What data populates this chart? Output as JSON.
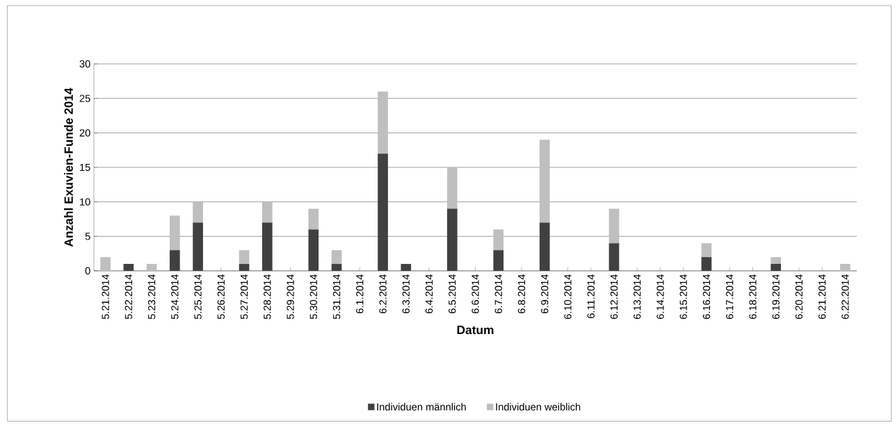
{
  "chart_data": {
    "type": "bar",
    "stacked": true,
    "xlabel": "Datum",
    "ylabel": "Anzahl Exuvien-Funde 2014",
    "categories": [
      "5.21.2014",
      "5.22.2014",
      "5.23.2014",
      "5.24.2014",
      "5.25.2014",
      "5.26.2014",
      "5.27.2014",
      "5.28.2014",
      "5.29.2014",
      "5.30.2014",
      "5.31.2014",
      "6.1.2014",
      "6.2.2014",
      "6.3.2014",
      "6.4.2014",
      "6.5.2014",
      "6.6.2014",
      "6.7.2014",
      "6.8.2014",
      "6.9.2014",
      "6.10.2014",
      "6.11.2014",
      "6.12.2014",
      "6.13.2014",
      "6.14.2014",
      "6.15.2014",
      "6.16.2014",
      "6.17.2014",
      "6.18.2014",
      "6.19.2014",
      "6.20.2014",
      "6.21.2014",
      "6.22.2014"
    ],
    "series": [
      {
        "name": "Individuen männlich",
        "color": "#404040",
        "values": [
          0,
          1,
          0,
          3,
          7,
          0,
          1,
          7,
          0,
          6,
          1,
          0,
          17,
          1,
          0,
          9,
          0,
          3,
          0,
          7,
          0,
          0,
          4,
          0,
          0,
          0,
          2,
          0,
          0,
          1,
          0,
          0,
          0
        ]
      },
      {
        "name": "Individuen weiblich",
        "color": "#bfbfbf",
        "values": [
          2,
          0,
          1,
          5,
          3,
          0,
          2,
          3,
          0,
          3,
          2,
          0,
          9,
          0,
          0,
          6,
          0,
          3,
          0,
          12,
          0,
          0,
          5,
          0,
          0,
          0,
          2,
          0,
          0,
          1,
          0,
          0,
          1
        ]
      }
    ],
    "ylim": [
      0,
      30
    ],
    "yticks": [
      0,
      5,
      10,
      15,
      20,
      25,
      30
    ],
    "grid": "y",
    "legend": "bottom"
  }
}
